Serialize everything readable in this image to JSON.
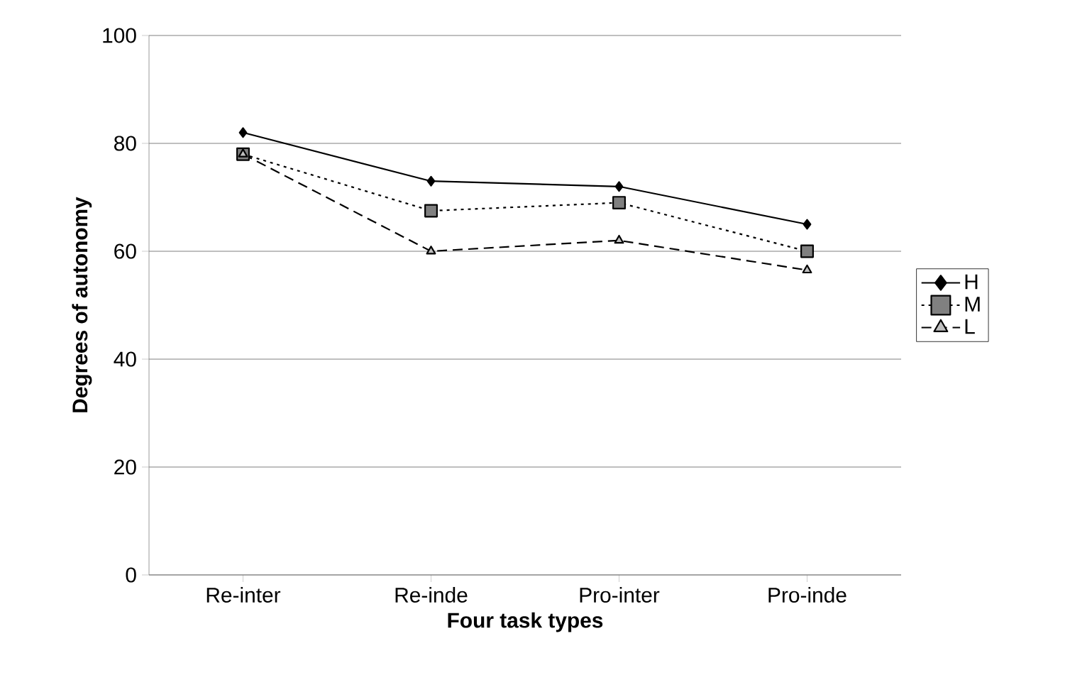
{
  "chart_data": {
    "type": "line",
    "xlabel": "Four task types",
    "ylabel": "Degrees of autonomy",
    "categories": [
      "Re-inter",
      "Re-inde",
      "Pro-inter",
      "Pro-inde"
    ],
    "series": [
      {
        "name": "H",
        "color": "#000000",
        "values": [
          82,
          73,
          72,
          65
        ],
        "marker": "diamond",
        "line_style": "solid"
      },
      {
        "name": "M",
        "color": "#000000",
        "values": [
          78,
          67.5,
          69,
          60
        ],
        "marker": "square",
        "line_style": "dotted"
      },
      {
        "name": "L",
        "color": "#000000",
        "values": [
          78,
          60,
          62,
          56.5
        ],
        "marker": "triangle",
        "line_style": "dashed"
      }
    ],
    "ylim": [
      0,
      100
    ],
    "yticks": [
      0,
      20,
      40,
      60,
      80,
      100
    ],
    "grid": "y",
    "legend": "right"
  }
}
